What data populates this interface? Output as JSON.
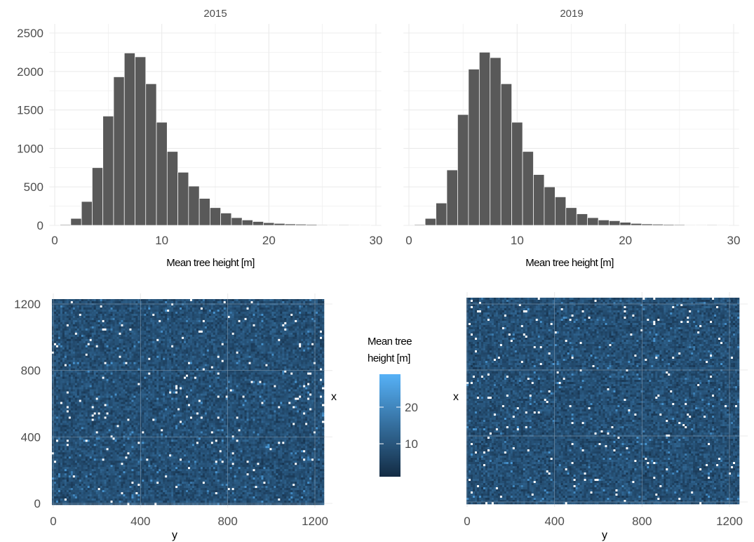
{
  "chart_data": [
    {
      "type": "bar",
      "panel": "2015",
      "title": "2015",
      "xlabel": "Mean tree height [m]",
      "ylabel": "",
      "xlim": [
        -0.5,
        30.5
      ],
      "ylim": [
        0,
        2600
      ],
      "x_ticks": [
        0,
        10,
        20,
        30
      ],
      "y_ticks": [
        0,
        500,
        1000,
        1500,
        2000,
        2500
      ],
      "bin_width": 1,
      "bin_centers": [
        1,
        2,
        3,
        4,
        5,
        6,
        7,
        8,
        9,
        10,
        11,
        12,
        13,
        14,
        15,
        16,
        17,
        18,
        19,
        20,
        21,
        22,
        23,
        24,
        25,
        26,
        27,
        28,
        29
      ],
      "values": [
        10,
        90,
        310,
        750,
        1420,
        1930,
        2240,
        2190,
        1840,
        1340,
        960,
        690,
        510,
        350,
        230,
        160,
        100,
        70,
        50,
        35,
        25,
        18,
        15,
        12,
        8,
        5,
        8,
        6,
        4
      ],
      "bar_color": "#595959",
      "grid": true
    },
    {
      "type": "bar",
      "panel": "2019",
      "title": "2019",
      "xlabel": "Mean tree height [m]",
      "ylabel": "",
      "xlim": [
        -0.5,
        30.5
      ],
      "ylim": [
        0,
        2600
      ],
      "x_ticks": [
        0,
        10,
        20,
        30
      ],
      "y_ticks": [
        0,
        500,
        1000,
        1500,
        2000,
        2500
      ],
      "bin_width": 1,
      "bin_centers": [
        1,
        2,
        3,
        4,
        5,
        6,
        7,
        8,
        9,
        10,
        11,
        12,
        13,
        14,
        15,
        16,
        17,
        18,
        19,
        20,
        21,
        22,
        23,
        24,
        25,
        26,
        27,
        28,
        29
      ],
      "values": [
        10,
        90,
        290,
        720,
        1440,
        2030,
        2250,
        2180,
        1840,
        1340,
        960,
        660,
        500,
        370,
        230,
        150,
        100,
        70,
        60,
        40,
        25,
        18,
        15,
        12,
        10,
        6,
        5,
        8,
        4
      ],
      "bar_color": "#595959",
      "grid": true
    },
    {
      "type": "heatmap",
      "panel": "2015",
      "xlabel": "y",
      "ylabel": "x",
      "xlim": [
        0,
        1240
      ],
      "ylim": [
        0,
        1240
      ],
      "x_ticks": [
        0,
        400,
        800,
        1200
      ],
      "y_ticks": [
        0,
        400,
        800,
        1200
      ],
      "value_range": [
        1,
        29
      ],
      "mean_value": 8,
      "grid": true
    },
    {
      "type": "heatmap",
      "panel": "2019",
      "xlabel": "y",
      "ylabel": "x",
      "xlim": [
        0,
        1240
      ],
      "ylim": [
        0,
        1240
      ],
      "x_ticks": [
        0,
        400,
        800,
        1200
      ],
      "y_ticks": [
        0,
        400,
        800,
        1200
      ],
      "value_range": [
        1,
        29
      ],
      "mean_value": 8,
      "grid": true
    }
  ],
  "legend": {
    "title_line1": "Mean tree",
    "title_line2": "height [m]",
    "ticks": [
      10,
      20
    ],
    "range": [
      1,
      29
    ],
    "color_low": "#132b43",
    "color_high": "#56b1f7",
    "placement": "center-right of left map"
  },
  "colors": {
    "grid": "#ebebeb",
    "axis_text": "#4d4d4d",
    "bar": "#595959",
    "bar_edge": "#ffffff"
  }
}
